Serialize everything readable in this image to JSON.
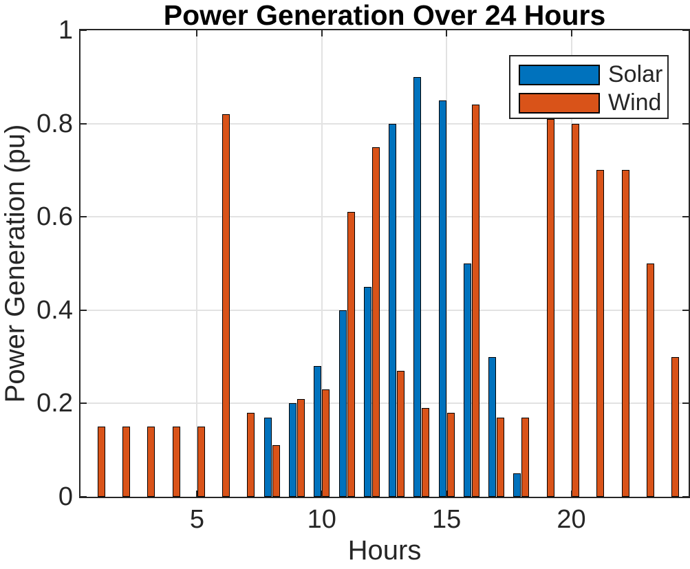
{
  "title": "Power Generation Over 24 Hours",
  "colors": {
    "solar": "#0072BD",
    "wind": "#D95319",
    "grid": "#E2E2E2",
    "axis": "#262626",
    "bar_edge": "#000000",
    "background": "#FFFFFF"
  },
  "legend": {
    "entries": [
      "Solar",
      "Wind"
    ]
  },
  "chart_data": {
    "type": "bar",
    "title": "Power Generation Over 24 Hours",
    "xlabel": "Hours",
    "ylabel": "Power Generation (pu)",
    "x": [
      1,
      2,
      3,
      4,
      5,
      6,
      7,
      8,
      9,
      10,
      11,
      12,
      13,
      14,
      15,
      16,
      17,
      18,
      19,
      20,
      21,
      22,
      23,
      24
    ],
    "series": [
      {
        "name": "Solar",
        "color": "#0072BD",
        "values": [
          0,
          0,
          0,
          0,
          0,
          0,
          0,
          0.17,
          0.2,
          0.28,
          0.4,
          0.45,
          0.8,
          0.9,
          0.85,
          0.5,
          0.3,
          0.05,
          0,
          0,
          0,
          0,
          0,
          0
        ]
      },
      {
        "name": "Wind",
        "color": "#D95319",
        "values": [
          0.15,
          0.15,
          0.15,
          0.15,
          0.15,
          0.82,
          0.18,
          0.11,
          0.21,
          0.23,
          0.61,
          0.75,
          0.27,
          0.19,
          0.18,
          0.84,
          0.17,
          0.17,
          0.81,
          0.8,
          0.7,
          0.7,
          0.5,
          0.3
        ]
      }
    ],
    "xticks": [
      5,
      10,
      15,
      20
    ],
    "xtick_labels": [
      "5",
      "10",
      "15",
      "20"
    ],
    "yticks": [
      0,
      0.2,
      0.4,
      0.6,
      0.8,
      1
    ],
    "ytick_labels": [
      "0",
      "0.2",
      "0.4",
      "0.6",
      "0.8",
      "1"
    ],
    "xlim": [
      0.33,
      24.7
    ],
    "ylim": [
      0,
      1
    ],
    "grid": true,
    "legend_position": "top-right"
  }
}
